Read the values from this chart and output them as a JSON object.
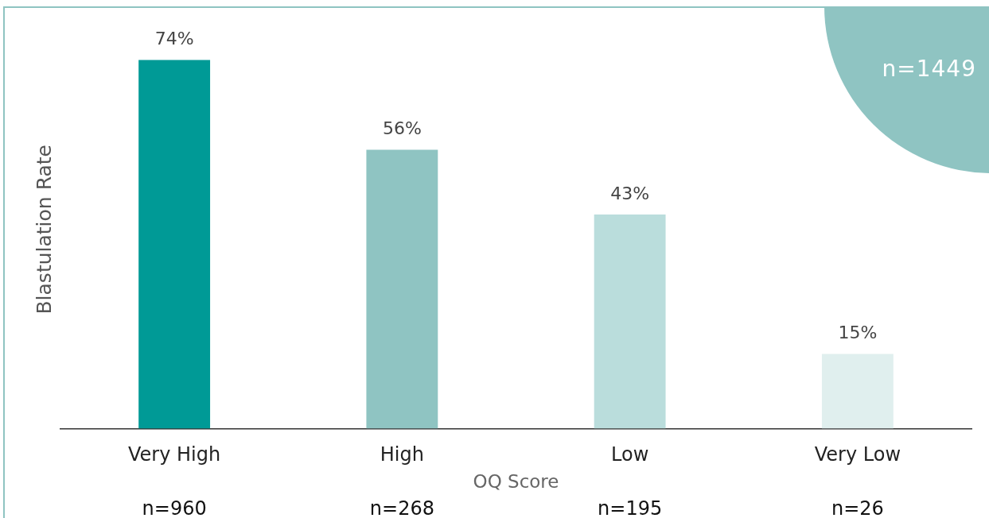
{
  "chart_data": {
    "type": "bar",
    "xlabel": "OQ Score",
    "ylabel": "Blastulation Rate",
    "categories": [
      "Very High",
      "High",
      "Low",
      "Very Low"
    ],
    "values": [
      74,
      56,
      43,
      15
    ],
    "colors": [
      "#009a96",
      "#8fc4c2",
      "#badddc",
      "#e0efee"
    ],
    "value_labels": [
      "74%",
      "56%",
      "43%",
      "15%"
    ],
    "annotations": [
      "n=1449",
      "n=960",
      "n=268",
      "n=195",
      "n=26"
    ]
  }
}
